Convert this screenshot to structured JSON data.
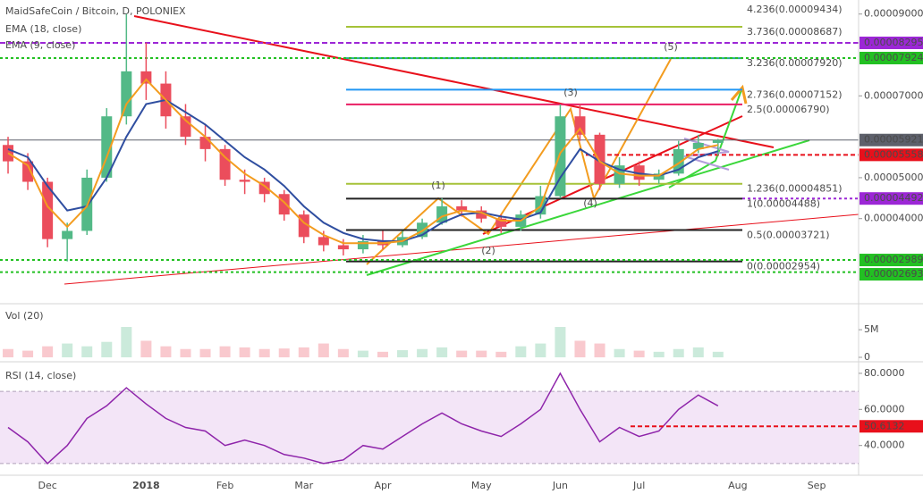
{
  "header": {
    "title": "MaidSafeCoin / Bitcoin, D, POLONIEX"
  },
  "chart_data": [
    {
      "type": "candlestick",
      "categories": [
        null,
        null,
        "Dec",
        null,
        null,
        null,
        null,
        "2018",
        null,
        null,
        null,
        "Feb",
        null,
        null,
        null,
        "Mar",
        null,
        null,
        null,
        "Apr",
        null,
        null,
        null,
        null,
        "May",
        null,
        null,
        null,
        "Jun",
        null,
        null,
        null,
        "Jul",
        null,
        null,
        null,
        null,
        "Aug",
        null,
        null,
        null,
        "Sep",
        null,
        null
      ],
      "open": [
        5.8e-05,
        5.4e-05,
        4.9e-05,
        3.5e-05,
        3.7e-05,
        5e-05,
        6.5e-05,
        7.6e-05,
        7.3e-05,
        6.5e-05,
        6e-05,
        5.7e-05,
        4.95e-05,
        4.9e-05,
        4.6e-05,
        4.1e-05,
        3.55e-05,
        3.35e-05,
        3.25e-05,
        3.45e-05,
        3.35e-05,
        3.55e-05,
        3.9e-05,
        4.3e-05,
        4.2e-05,
        4e-05,
        3.8e-05,
        4.1e-05,
        4.55e-05,
        6.5e-05,
        6.05e-05,
        4.85e-05,
        5.3e-05,
        4.95e-05,
        5.1e-05,
        5.7e-05,
        5.85e-05,
        null,
        null,
        null,
        null,
        null,
        null,
        null
      ],
      "high": [
        6e-05,
        5.6e-05,
        5e-05,
        3.9e-05,
        5.2e-05,
        6.7e-05,
        9e-05,
        8.3e-05,
        7.6e-05,
        6.8e-05,
        6.3e-05,
        5.8e-05,
        5.2e-05,
        5e-05,
        4.7e-05,
        4.2e-05,
        3.7e-05,
        3.5e-05,
        3.6e-05,
        3.7e-05,
        3.7e-05,
        4e-05,
        4.5e-05,
        4.45e-05,
        4.3e-05,
        4.1e-05,
        4.2e-05,
        4.8e-05,
        6.79e-05,
        6.8e-05,
        6.1e-05,
        5.5e-05,
        5.4e-05,
        5.2e-05,
        5.9e-05,
        6.05e-05,
        5.95e-05,
        null,
        null,
        null,
        null,
        null,
        null,
        null
      ],
      "low": [
        5.1e-05,
        4.7e-05,
        3.3e-05,
        2.954e-05,
        3.6e-05,
        4.9e-05,
        6.3e-05,
        6.9e-05,
        6.2e-05,
        5.8e-05,
        5.4e-05,
        4.8e-05,
        4.6e-05,
        4.4e-05,
        3.95e-05,
        3.4e-05,
        3.2e-05,
        3.1e-05,
        3.15e-05,
        3.25e-05,
        3.3e-05,
        3.5e-05,
        3.85e-05,
        4.05e-05,
        3.9e-05,
        3.65e-05,
        3.7e-05,
        4e-05,
        4.5e-05,
        5.9e-05,
        4.7e-05,
        4.75e-05,
        4.8e-05,
        4.85e-05,
        5.05e-05,
        5.6e-05,
        5.55e-05,
        null,
        null,
        null,
        null,
        null,
        null,
        null
      ],
      "close": [
        5.4e-05,
        4.9e-05,
        3.5e-05,
        3.7e-05,
        5e-05,
        6.5e-05,
        7.6e-05,
        7.3e-05,
        6.5e-05,
        6e-05,
        5.7e-05,
        4.95e-05,
        4.9e-05,
        4.6e-05,
        4.1e-05,
        3.55e-05,
        3.35e-05,
        3.25e-05,
        3.45e-05,
        3.35e-05,
        3.55e-05,
        3.9e-05,
        4.3e-05,
        4.2e-05,
        4e-05,
        3.8e-05,
        4.1e-05,
        4.55e-05,
        6.5e-05,
        6.05e-05,
        4.85e-05,
        5.3e-05,
        4.95e-05,
        5.1e-05,
        5.7e-05,
        5.85e-05,
        5.921e-05,
        null,
        null,
        null,
        null,
        null,
        null,
        null
      ],
      "up_color": "#53b987",
      "down_color": "#eb4d5c",
      "series": [
        {
          "name": "EMA (18, close)",
          "color": "#2f4ea0",
          "values": [
            5.7e-05,
            5.5e-05,
            4.8e-05,
            4.2e-05,
            4.3e-05,
            5e-05,
            6e-05,
            6.8e-05,
            6.9e-05,
            6.6e-05,
            6.3e-05,
            5.9e-05,
            5.5e-05,
            5.2e-05,
            4.8e-05,
            4.3e-05,
            3.9e-05,
            3.65e-05,
            3.5e-05,
            3.45e-05,
            3.45e-05,
            3.6e-05,
            3.9e-05,
            4.1e-05,
            4.15e-05,
            4.05e-05,
            3.98e-05,
            4.15e-05,
            5e-05,
            5.7e-05,
            5.4e-05,
            5.2e-05,
            5.1e-05,
            5.05e-05,
            5.2e-05,
            5.5e-05,
            5.65e-05,
            null,
            null,
            null,
            null,
            null,
            null,
            null
          ]
        },
        {
          "name": "EMA (9, close)",
          "color": "#f39c1f",
          "values": [
            5.6e-05,
            5.3e-05,
            4.3e-05,
            3.8e-05,
            4.3e-05,
            5.5e-05,
            6.8e-05,
            7.4e-05,
            6.9e-05,
            6.4e-05,
            6e-05,
            5.5e-05,
            5.1e-05,
            4.8e-05,
            4.4e-05,
            3.9e-05,
            3.6e-05,
            3.4e-05,
            3.4e-05,
            3.4e-05,
            3.45e-05,
            3.7e-05,
            4.05e-05,
            4.2e-05,
            4.15e-05,
            3.95e-05,
            3.95e-05,
            4.3e-05,
            5.6e-05,
            6.2e-05,
            5.4e-05,
            5.1e-05,
            5.05e-05,
            5.05e-05,
            5.35e-05,
            5.7e-05,
            5.8e-05,
            null,
            null,
            null,
            null,
            null,
            null,
            null
          ]
        }
      ],
      "ylim": [
        1.92e-05,
        9.343e-05
      ],
      "yticks": [
        {
          "value": 9e-05,
          "label": "0.00009000"
        },
        {
          "value": 7e-05,
          "label": "0.00007000"
        },
        {
          "value": 5e-05,
          "label": "0.00005000"
        },
        {
          "value": 4e-05,
          "label": "0.00004000"
        }
      ],
      "levels": [
        {
          "value": 8.295e-05,
          "label": "0.00008295",
          "color": "#9c27d6"
        },
        {
          "value": 7.924e-05,
          "label": "0.00007924",
          "color": "#22c022"
        },
        {
          "value": 5.921e-05,
          "label": "0.00005921",
          "color": "#5d606b"
        },
        {
          "value": 5.558e-05,
          "label": "0.00005558",
          "color": "#e8101b"
        },
        {
          "value": 4.492e-05,
          "label": "0.00004492",
          "color": "#9c27d6"
        },
        {
          "value": 2.989e-05,
          "label": "0.00002989",
          "color": "#22c022"
        },
        {
          "value": 2.693e-05,
          "label": "0.00002693",
          "color": "#22c022"
        }
      ],
      "fib": [
        {
          "value": 9.434e-05,
          "label": "4.236(0.00009434)",
          "color": "#4caf50"
        },
        {
          "value": 8.687e-05,
          "label": "3.736(0.00008687)",
          "color": "#a5c238"
        },
        {
          "value": 7.92e-05,
          "label": "3.236(0.00007920)",
          "color": "#26a69a"
        },
        {
          "value": 7.152e-05,
          "label": "2.736(0.00007152)",
          "color": "#2196f3"
        },
        {
          "value": 6.79e-05,
          "label": "2.5(0.00006790)",
          "color": "#e91e63"
        },
        {
          "value": 4.851e-05,
          "label": "1.236(0.00004851)",
          "color": "#a5c238"
        },
        {
          "value": 4.488e-05,
          "label": "1(0.00004488)",
          "color": "#222222"
        },
        {
          "value": 3.721e-05,
          "label": "0.5(0.00003721)",
          "color": "#222222"
        },
        {
          "value": 2.954e-05,
          "label": "0(0.00002954)",
          "color": "#222222"
        }
      ],
      "annotations": [
        "(1)",
        "(2)",
        "(3)",
        "(4)",
        "(5)"
      ]
    },
    {
      "type": "bar",
      "title": "Vol (20)",
      "values": [
        1500000,
        1200000,
        2000000,
        2500000,
        2000000,
        2800000,
        5500000,
        3000000,
        2000000,
        1500000,
        1500000,
        2000000,
        1800000,
        1500000,
        1600000,
        1800000,
        2500000,
        1500000,
        1200000,
        1000000,
        1300000,
        1500000,
        1800000,
        1200000,
        1200000,
        1000000,
        2000000,
        2500000,
        5500000,
        3000000,
        2500000,
        1500000,
        1200000,
        1000000,
        1500000,
        1800000,
        1000000,
        null,
        null,
        null,
        null,
        null,
        null,
        null
      ],
      "ylim": [
        0,
        8900000
      ],
      "yticks": [
        {
          "value": 5000000,
          "label": "5M"
        },
        0
      ]
    },
    {
      "type": "line",
      "title": "RSI (14, close)",
      "color": "#8e24aa",
      "values": [
        50,
        42,
        30,
        40,
        55,
        62,
        72,
        63,
        55,
        50,
        48,
        40,
        43,
        40,
        35,
        33,
        30,
        32,
        40,
        38,
        45,
        52,
        58,
        52,
        48,
        45,
        52,
        60,
        80,
        60,
        42,
        50,
        45,
        48,
        60,
        68,
        62,
        null,
        null,
        null,
        null,
        null,
        null,
        null
      ],
      "ylim": [
        23.5,
        86.4
      ],
      "yticks": [
        {
          "value": 80,
          "label": "80.0000"
        },
        {
          "value": 60,
          "label": "60.0000"
        },
        {
          "value": 40,
          "label": "40.0000"
        }
      ],
      "band": [
        30,
        70
      ],
      "marker": 50.6132
    }
  ]
}
